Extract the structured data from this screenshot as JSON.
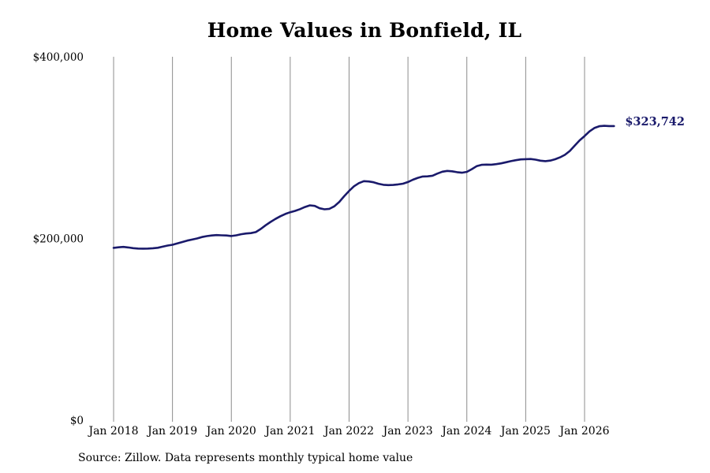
{
  "chart_data": {
    "type": "line",
    "title": "Home Values in Bonfield, IL",
    "xlabel": "",
    "ylabel": "",
    "ylim": [
      0,
      400000
    ],
    "yticks": [
      {
        "value": 0,
        "label": "$0"
      },
      {
        "value": 200000,
        "label": "$200,000"
      },
      {
        "value": 400000,
        "label": "$400,000"
      }
    ],
    "xlim": [
      "2018-01",
      "2026-07"
    ],
    "xticks": [
      {
        "value": "2018-01",
        "label": "Jan 2018"
      },
      {
        "value": "2019-01",
        "label": "Jan 2019"
      },
      {
        "value": "2020-01",
        "label": "Jan 2020"
      },
      {
        "value": "2021-01",
        "label": "Jan 2021"
      },
      {
        "value": "2022-01",
        "label": "Jan 2022"
      },
      {
        "value": "2023-01",
        "label": "Jan 2023"
      },
      {
        "value": "2024-01",
        "label": "Jan 2024"
      },
      {
        "value": "2025-01",
        "label": "Jan 2025"
      },
      {
        "value": "2026-01",
        "label": "Jan 2026"
      }
    ],
    "grid": "vertical",
    "series": [
      {
        "color": "#1a1a6b",
        "end_label": "$323,742",
        "points": [
          [
            "2018-01",
            189700
          ],
          [
            "2018-02",
            190300
          ],
          [
            "2018-03",
            190700
          ],
          [
            "2018-04",
            190100
          ],
          [
            "2018-05",
            189300
          ],
          [
            "2018-06",
            188900
          ],
          [
            "2018-07",
            188800
          ],
          [
            "2018-08",
            188900
          ],
          [
            "2018-09",
            189200
          ],
          [
            "2018-10",
            189800
          ],
          [
            "2018-11",
            191000
          ],
          [
            "2018-12",
            192200
          ],
          [
            "2019-01",
            193100
          ],
          [
            "2019-02",
            194500
          ],
          [
            "2019-03",
            196100
          ],
          [
            "2019-04",
            197700
          ],
          [
            "2019-05",
            198800
          ],
          [
            "2019-06",
            200000
          ],
          [
            "2019-07",
            201600
          ],
          [
            "2019-08",
            202600
          ],
          [
            "2019-09",
            203300
          ],
          [
            "2019-10",
            203700
          ],
          [
            "2019-11",
            203500
          ],
          [
            "2019-12",
            203300
          ],
          [
            "2020-01",
            202700
          ],
          [
            "2020-02",
            203500
          ],
          [
            "2020-03",
            204700
          ],
          [
            "2020-04",
            205500
          ],
          [
            "2020-05",
            205900
          ],
          [
            "2020-06",
            207000
          ],
          [
            "2020-07",
            210500
          ],
          [
            "2020-08",
            214600
          ],
          [
            "2020-09",
            218200
          ],
          [
            "2020-10",
            221500
          ],
          [
            "2020-11",
            224500
          ],
          [
            "2020-12",
            227000
          ],
          [
            "2021-01",
            228900
          ],
          [
            "2021-02",
            230400
          ],
          [
            "2021-03",
            232300
          ],
          [
            "2021-04",
            234600
          ],
          [
            "2021-05",
            236400
          ],
          [
            "2021-06",
            235800
          ],
          [
            "2021-07",
            233200
          ],
          [
            "2021-08",
            232100
          ],
          [
            "2021-09",
            232600
          ],
          [
            "2021-10",
            235400
          ],
          [
            "2021-11",
            240300
          ],
          [
            "2021-12",
            246500
          ],
          [
            "2022-01",
            252300
          ],
          [
            "2022-02",
            257400
          ],
          [
            "2022-03",
            260900
          ],
          [
            "2022-04",
            263100
          ],
          [
            "2022-05",
            262700
          ],
          [
            "2022-06",
            261900
          ],
          [
            "2022-07",
            260200
          ],
          [
            "2022-08",
            259100
          ],
          [
            "2022-09",
            258700
          ],
          [
            "2022-10",
            258900
          ],
          [
            "2022-11",
            259500
          ],
          [
            "2022-12",
            260300
          ],
          [
            "2023-01",
            262100
          ],
          [
            "2023-02",
            264600
          ],
          [
            "2023-03",
            266700
          ],
          [
            "2023-04",
            268200
          ],
          [
            "2023-05",
            268400
          ],
          [
            "2023-06",
            269100
          ],
          [
            "2023-07",
            271400
          ],
          [
            "2023-08",
            273500
          ],
          [
            "2023-09",
            274400
          ],
          [
            "2023-10",
            273900
          ],
          [
            "2023-11",
            273000
          ],
          [
            "2023-12",
            272400
          ],
          [
            "2024-01",
            273300
          ],
          [
            "2024-02",
            276300
          ],
          [
            "2024-03",
            279600
          ],
          [
            "2024-04",
            281000
          ],
          [
            "2024-05",
            281300
          ],
          [
            "2024-06",
            281200
          ],
          [
            "2024-07",
            281800
          ],
          [
            "2024-08",
            282700
          ],
          [
            "2024-09",
            283900
          ],
          [
            "2024-10",
            285100
          ],
          [
            "2024-11",
            286200
          ],
          [
            "2024-12",
            287000
          ],
          [
            "2025-01",
            287300
          ],
          [
            "2025-02",
            287500
          ],
          [
            "2025-03",
            286800
          ],
          [
            "2025-04",
            285600
          ],
          [
            "2025-05",
            285100
          ],
          [
            "2025-06",
            285700
          ],
          [
            "2025-07",
            287200
          ],
          [
            "2025-08",
            289300
          ],
          [
            "2025-09",
            292100
          ],
          [
            "2025-10",
            296300
          ],
          [
            "2025-11",
            302300
          ],
          [
            "2025-12",
            308000
          ],
          [
            "2026-01",
            312700
          ],
          [
            "2026-02",
            317800
          ],
          [
            "2026-03",
            321600
          ],
          [
            "2026-04",
            323600
          ],
          [
            "2026-05",
            324000
          ],
          [
            "2026-06",
            323700
          ],
          [
            "2026-07",
            323742
          ]
        ]
      }
    ]
  },
  "footer": {
    "source": "Source: Zillow. Data represents monthly typical home value"
  }
}
